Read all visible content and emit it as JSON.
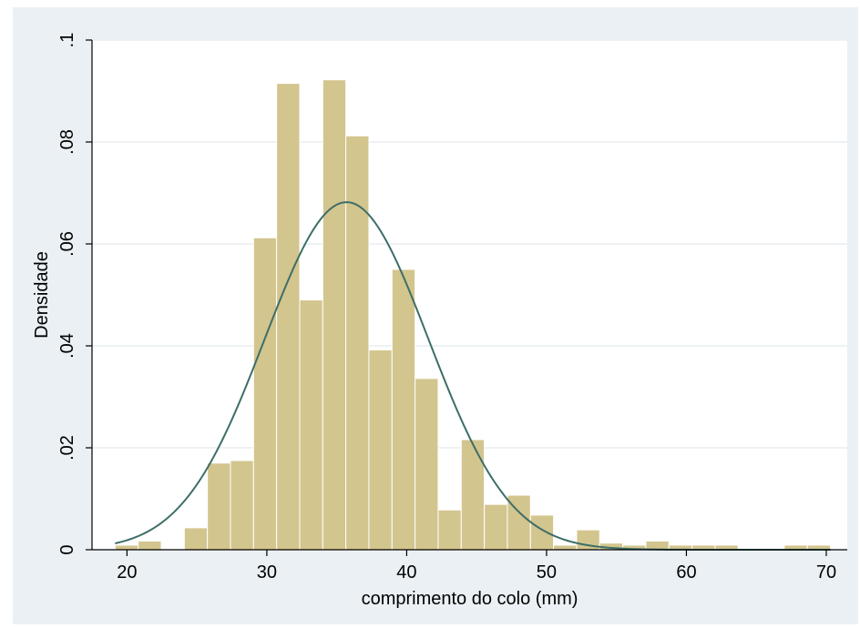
{
  "chart_data": {
    "type": "bar",
    "title": "",
    "xlabel": "comprimento do colo (mm)",
    "ylabel": "Densidade",
    "xlim": [
      17.5,
      71.5
    ],
    "ylim": [
      0,
      0.1
    ],
    "x_ticks": [
      20,
      30,
      40,
      50,
      60,
      70
    ],
    "x_tick_labels": [
      "20",
      "30",
      "40",
      "50",
      "60",
      "70"
    ],
    "y_ticks": [
      0,
      0.02,
      0.04,
      0.06,
      0.08,
      0.1
    ],
    "y_tick_labels": [
      "0",
      ".02",
      ".04",
      ".06",
      ".08",
      ".1"
    ],
    "grid": "horizontal",
    "colors": {
      "outer_background": "#eaf0f4",
      "plot_background": "#ffffff",
      "bar_fill": "#d3c58e",
      "bar_edge": "#ffffff",
      "curve": "#3d6e68",
      "grid": "#e9eef1",
      "axis": "#000000"
    },
    "bin_width": 1.65,
    "bins": [
      {
        "x0": 19.15,
        "y": 0.0009
      },
      {
        "x0": 20.8,
        "y": 0.0017
      },
      {
        "x0": 22.45,
        "y": 0
      },
      {
        "x0": 24.1,
        "y": 0.0043
      },
      {
        "x0": 25.75,
        "y": 0.017
      },
      {
        "x0": 27.4,
        "y": 0.0175
      },
      {
        "x0": 29.05,
        "y": 0.0612
      },
      {
        "x0": 30.7,
        "y": 0.0915
      },
      {
        "x0": 32.35,
        "y": 0.049
      },
      {
        "x0": 34.0,
        "y": 0.0922
      },
      {
        "x0": 35.65,
        "y": 0.0812
      },
      {
        "x0": 37.3,
        "y": 0.0392
      },
      {
        "x0": 38.95,
        "y": 0.055
      },
      {
        "x0": 40.6,
        "y": 0.0336
      },
      {
        "x0": 42.25,
        "y": 0.0078
      },
      {
        "x0": 43.9,
        "y": 0.0216
      },
      {
        "x0": 45.55,
        "y": 0.0089
      },
      {
        "x0": 47.2,
        "y": 0.0107
      },
      {
        "x0": 48.85,
        "y": 0.0068
      },
      {
        "x0": 50.5,
        "y": 0.0009
      },
      {
        "x0": 52.15,
        "y": 0.0039
      },
      {
        "x0": 53.8,
        "y": 0.0013
      },
      {
        "x0": 55.45,
        "y": 0.0009
      },
      {
        "x0": 57.1,
        "y": 0.0017
      },
      {
        "x0": 58.75,
        "y": 0.0009
      },
      {
        "x0": 60.4,
        "y": 0.0009
      },
      {
        "x0": 62.05,
        "y": 0.0009
      },
      {
        "x0": 63.7,
        "y": 0
      },
      {
        "x0": 65.35,
        "y": 0
      },
      {
        "x0": 67.0,
        "y": 0.0009
      },
      {
        "x0": 68.65,
        "y": 0.0009
      }
    ],
    "normal_curve": {
      "mean": 35.7,
      "sd": 5.85,
      "x_range": [
        19.15,
        70.3
      ]
    }
  }
}
